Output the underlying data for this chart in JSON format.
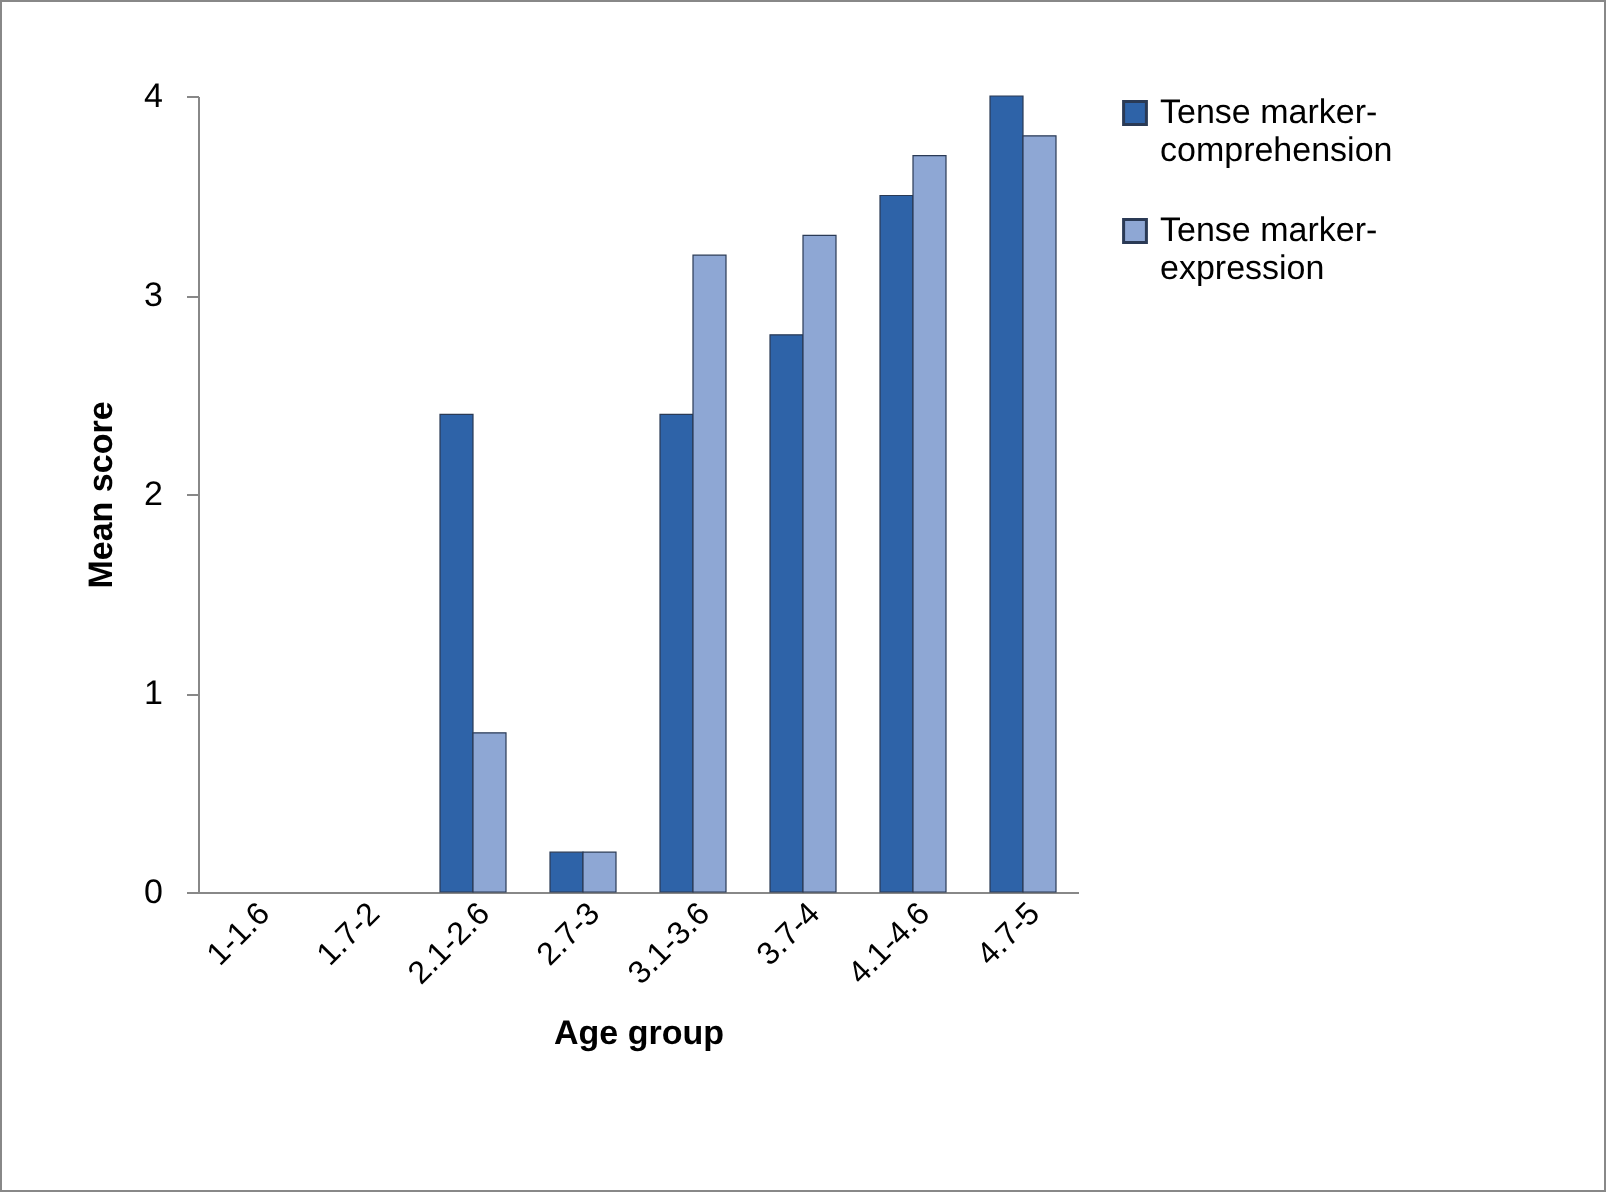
{
  "chart_data": {
    "type": "bar",
    "xlabel": "Age group",
    "ylabel": "Mean score",
    "categories": [
      "1-1.6",
      "1.7-2",
      "2.1-2.6",
      "2.7-3",
      "3.1-3.6",
      "3.7-4",
      "4.1-4.6",
      "4.7-5"
    ],
    "series": [
      {
        "name": "Tense marker-comprehension",
        "color": "#2e63a8",
        "values": [
          null,
          null,
          2.4,
          0.2,
          2.4,
          2.8,
          3.5,
          4.0
        ]
      },
      {
        "name": "Tense marker-expression",
        "color": "#8ea7d4",
        "values": [
          null,
          null,
          0.8,
          0.2,
          3.2,
          3.3,
          3.7,
          3.8
        ]
      }
    ],
    "ylim": [
      0,
      4
    ],
    "yticks": [
      0,
      1,
      2,
      3,
      4
    ],
    "grid": false,
    "legend": "right"
  }
}
